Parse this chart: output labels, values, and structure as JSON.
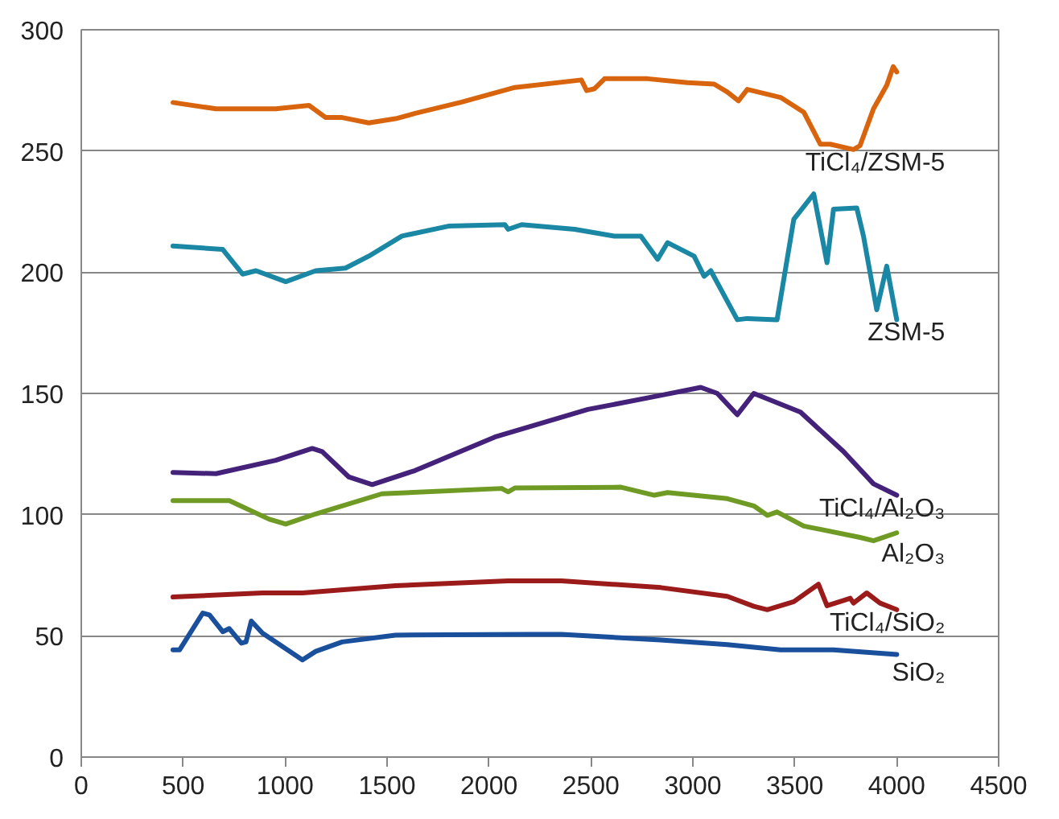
{
  "chart_data": {
    "type": "line",
    "xlim": [
      0,
      4500
    ],
    "ylim": [
      0,
      300
    ],
    "xticks": [
      0,
      500,
      1000,
      1500,
      2000,
      2500,
      3000,
      3500,
      4000,
      4500
    ],
    "yticks": [
      0,
      50,
      100,
      150,
      200,
      250,
      300
    ],
    "grid": "y",
    "line_style": "solid",
    "series": [
      {
        "name": "TiCl₄/ZSM-5",
        "color": "#d8650e",
        "x": [
          450,
          661,
          954,
          1117,
          1199,
          1280,
          1410,
          1541,
          1638,
          1866,
          2127,
          2453,
          2479,
          2518,
          2567,
          2778,
          2974,
          3104,
          3169,
          3224,
          3267,
          3430,
          3544,
          3625,
          3674,
          3788,
          3820,
          3886,
          3951,
          3983,
          4000
        ],
        "values": [
          270,
          267.4,
          267.4,
          268.8,
          263.8,
          263.8,
          261.6,
          263.3,
          265.5,
          270.2,
          276.2,
          279.3,
          274.9,
          275.7,
          279.8,
          279.8,
          278.2,
          277.6,
          274.3,
          270.7,
          275.4,
          272.1,
          266,
          252.8,
          252.8,
          250.6,
          252.2,
          267.4,
          277.1,
          284.8,
          282.6
        ]
      },
      {
        "name": "ZSM-5",
        "color": "#1a87a4",
        "x": [
          450,
          694,
          791,
          857,
          1003,
          1150,
          1296,
          1410,
          1573,
          1801,
          2078,
          2094,
          2160,
          2420,
          2615,
          2745,
          2827,
          2876,
          3006,
          3055,
          3088,
          3218,
          3267,
          3413,
          3495,
          3593,
          3658,
          3690,
          3804,
          3837,
          3902,
          3951,
          4000
        ],
        "values": [
          210.8,
          209.4,
          199.2,
          200.6,
          196.1,
          200.6,
          201.7,
          206.6,
          214.9,
          219,
          219.6,
          217.7,
          219.6,
          217.7,
          214.9,
          214.9,
          205.3,
          212.2,
          206.6,
          198.3,
          200.6,
          180.4,
          180.9,
          180.4,
          221.8,
          232.3,
          203.9,
          226,
          226.5,
          214.9,
          184.5,
          202.5,
          180.4
        ]
      },
      {
        "name": "TiCl₄/Al₂O₃",
        "color": "#44227a",
        "x": [
          450,
          661,
          954,
          1133,
          1182,
          1313,
          1427,
          1638,
          2029,
          2485,
          2843,
          3039,
          3120,
          3218,
          3299,
          3528,
          3739,
          3886,
          4000
        ],
        "values": [
          117.4,
          116.9,
          122.4,
          127.3,
          126,
          115.5,
          112.4,
          118.2,
          132,
          143.4,
          149.2,
          152.5,
          150,
          141.2,
          150,
          142.3,
          126,
          112.7,
          108
        ]
      },
      {
        "name": "Al₂O₃",
        "color": "#6f9a24",
        "x": [
          450,
          726,
          922,
          1003,
          1150,
          1475,
          2062,
          2094,
          2127,
          2648,
          2811,
          2876,
          3169,
          3299,
          3365,
          3413,
          3544,
          3820,
          3886,
          4000
        ],
        "values": [
          105.8,
          105.8,
          98.1,
          96.1,
          100.3,
          108.6,
          110.8,
          109.4,
          111,
          111.3,
          108,
          109.1,
          106.6,
          103.6,
          99.7,
          101.1,
          95.3,
          90.6,
          89.2,
          92.5
        ]
      },
      {
        "name": "TiCl₄/SiO₂",
        "color": "#9b1b1b",
        "x": [
          450,
          889,
          1085,
          1541,
          2094,
          2355,
          2843,
          3169,
          3299,
          3365,
          3495,
          3616,
          3658,
          3739,
          3772,
          3788,
          3853,
          3918,
          4000
        ],
        "values": [
          66,
          67.7,
          67.7,
          70.7,
          72.7,
          72.7,
          69.9,
          66.3,
          62.2,
          60.8,
          64.1,
          71.3,
          62.4,
          64.6,
          65.5,
          63.5,
          67.7,
          63.5,
          60.8
        ]
      },
      {
        "name": "SiO₂",
        "color": "#1a4f9c",
        "x": [
          450,
          482,
          596,
          629,
          694,
          726,
          785,
          808,
          834,
          889,
          1085,
          1150,
          1280,
          1541,
          2192,
          2355,
          2843,
          3169,
          3430,
          3690,
          4000
        ],
        "values": [
          44.2,
          44.2,
          59.4,
          58.6,
          51.7,
          53,
          47,
          47.5,
          56.1,
          51.1,
          40.1,
          43.6,
          47.5,
          50.3,
          50.6,
          50.6,
          48.3,
          46.4,
          44.2,
          44.2,
          42.3
        ]
      }
    ]
  }
}
